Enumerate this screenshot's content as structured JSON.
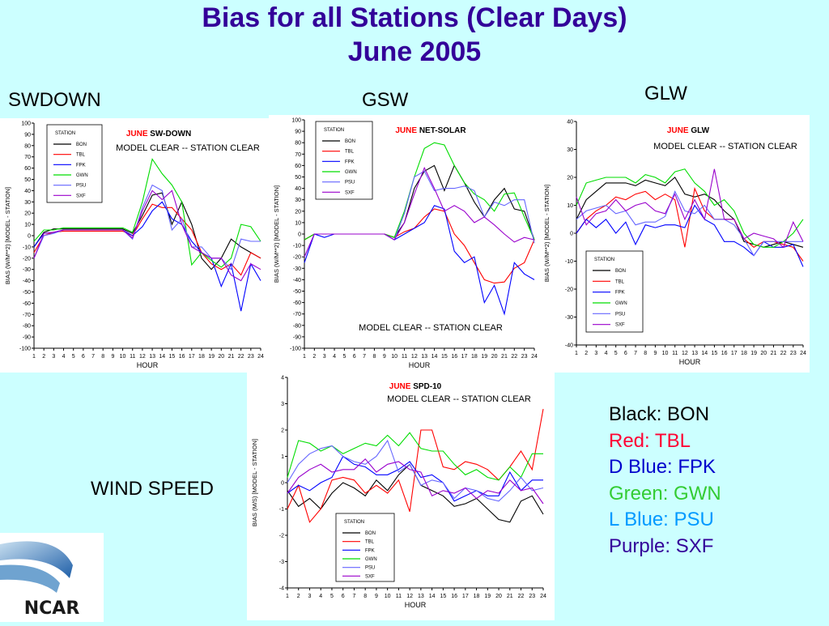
{
  "header": {
    "title_line1": "Bias for all Stations (Clear Days)",
    "title_line2": "June 2005"
  },
  "labels": {
    "swdown": "SWDOWN",
    "gsw": "GSW",
    "glw": "GLW",
    "wind": "WIND SPEED"
  },
  "color_legend": [
    {
      "text": "Black: BON",
      "color": "#000000"
    },
    {
      "text": "Red:  TBL",
      "color": "#ff0033"
    },
    {
      "text": "D Blue: FPK",
      "color": "#0000cc"
    },
    {
      "text": "Green: GWN",
      "color": "#33cc33"
    },
    {
      "text": "L Blue: PSU",
      "color": "#0099ff"
    },
    {
      "text": "Purple: SXF",
      "color": "#330099"
    }
  ],
  "logo": {
    "text": "NCAR"
  },
  "chart_data": [
    {
      "type": "line",
      "month_label": "JUNE",
      "variable_label": "SW-DOWN",
      "subtitle": "MODEL CLEAR   -- STATION CLEAR",
      "xlabel": "HOUR",
      "ylabel": "BIAS (W/M**2)  [MODEL - STATION]",
      "xlim": [
        1,
        24
      ],
      "ylim": [
        -100,
        100
      ],
      "ytick_step": 10,
      "legend_title": "STATION",
      "legend_placement": "top-left",
      "x": [
        1,
        2,
        3,
        4,
        5,
        6,
        7,
        8,
        9,
        10,
        11,
        12,
        13,
        14,
        15,
        16,
        17,
        18,
        19,
        20,
        21,
        22,
        23,
        24
      ],
      "series": [
        {
          "name": "BON",
          "color": "#000000",
          "values": [
            -10,
            3,
            6,
            6,
            6,
            6,
            6,
            6,
            6,
            6,
            2,
            18,
            36,
            38,
            10,
            30,
            10,
            -20,
            -30,
            -20,
            -3,
            -10,
            -15,
            -20
          ]
        },
        {
          "name": "TBL",
          "color": "#ff0000",
          "values": [
            -15,
            0,
            3,
            4,
            4,
            4,
            4,
            4,
            4,
            4,
            0,
            15,
            28,
            25,
            25,
            15,
            5,
            -15,
            -25,
            -30,
            -25,
            -35,
            -15,
            -20
          ]
        },
        {
          "name": "FPK",
          "color": "#0000ff",
          "values": [
            -10,
            2,
            3,
            5,
            5,
            5,
            5,
            5,
            5,
            5,
            0,
            8,
            22,
            30,
            15,
            10,
            -5,
            -15,
            -20,
            -45,
            -25,
            -67,
            -25,
            -40
          ]
        },
        {
          "name": "GWN",
          "color": "#00dd00",
          "values": [
            -5,
            5,
            5,
            7,
            7,
            7,
            7,
            7,
            7,
            7,
            3,
            30,
            68,
            55,
            45,
            30,
            -26,
            -15,
            -22,
            -28,
            -20,
            10,
            8,
            -5
          ]
        },
        {
          "name": "PSU",
          "color": "#6666ff",
          "values": [
            -20,
            0,
            2,
            5,
            5,
            5,
            5,
            5,
            5,
            5,
            -3,
            25,
            45,
            40,
            5,
            15,
            -10,
            -10,
            -20,
            -20,
            -30,
            -3,
            -5,
            -5
          ]
        },
        {
          "name": "SXF",
          "color": "#9900cc",
          "values": [
            -20,
            2,
            3,
            5,
            5,
            5,
            5,
            5,
            5,
            5,
            -2,
            22,
            40,
            32,
            40,
            10,
            -10,
            -15,
            -20,
            -20,
            -35,
            -40,
            -25,
            -30
          ]
        }
      ]
    },
    {
      "type": "line",
      "month_label": "JUNE",
      "variable_label": "NET-SOLAR",
      "subtitle": "MODEL CLEAR   -- STATION CLEAR",
      "xlabel": "HOUR",
      "ylabel": "BIAS (W/M**2)  [MODEL - STATION]",
      "xlim": [
        1,
        24
      ],
      "ylim": [
        -100,
        100
      ],
      "ytick_step": 10,
      "legend_title": "STATION",
      "legend_placement": "top-left",
      "x": [
        1,
        2,
        3,
        4,
        5,
        6,
        7,
        8,
        9,
        10,
        11,
        12,
        13,
        14,
        15,
        16,
        17,
        18,
        19,
        20,
        21,
        22,
        23,
        24
      ],
      "series": [
        {
          "name": "BON",
          "color": "#000000",
          "values": [
            -5,
            0,
            0,
            0,
            0,
            0,
            0,
            0,
            0,
            -3,
            10,
            40,
            55,
            60,
            38,
            60,
            45,
            28,
            15,
            30,
            40,
            22,
            20,
            -5
          ]
        },
        {
          "name": "TBL",
          "color": "#ff0000",
          "values": [
            -5,
            0,
            0,
            0,
            0,
            0,
            0,
            0,
            0,
            -3,
            2,
            5,
            15,
            22,
            20,
            0,
            -10,
            -25,
            -40,
            -43,
            -42,
            -30,
            -25,
            -5
          ]
        },
        {
          "name": "FPK",
          "color": "#0000ff",
          "values": [
            -25,
            0,
            -3,
            0,
            0,
            0,
            0,
            0,
            0,
            -5,
            0,
            5,
            10,
            25,
            22,
            -15,
            -25,
            -20,
            -60,
            -45,
            -70,
            -25,
            -35,
            -40
          ]
        },
        {
          "name": "GWN",
          "color": "#00dd00",
          "values": [
            -5,
            0,
            0,
            0,
            0,
            0,
            0,
            0,
            0,
            -3,
            20,
            50,
            75,
            80,
            78,
            60,
            45,
            35,
            30,
            20,
            35,
            36,
            15,
            -5
          ]
        },
        {
          "name": "PSU",
          "color": "#6666ff",
          "values": [
            -20,
            0,
            0,
            0,
            0,
            0,
            0,
            0,
            0,
            -5,
            18,
            50,
            55,
            38,
            40,
            40,
            42,
            38,
            15,
            28,
            25,
            30,
            30,
            -8
          ]
        },
        {
          "name": "SXF",
          "color": "#9900cc",
          "values": [
            -20,
            0,
            0,
            0,
            0,
            0,
            0,
            0,
            0,
            -5,
            10,
            35,
            58,
            40,
            20,
            25,
            20,
            10,
            15,
            8,
            0,
            -7,
            -3,
            -5
          ]
        }
      ]
    },
    {
      "type": "line",
      "month_label": "JUNE",
      "variable_label": "GLW",
      "subtitle": "MODEL CLEAR   -- STATION CLEAR",
      "xlabel": "HOUR",
      "ylabel": "BIAS (W/M**2)  [MODEL - STATION]",
      "xlim": [
        1,
        24
      ],
      "ylim": [
        -40,
        40
      ],
      "ytick_step": 10,
      "legend_title": "STATION",
      "legend_placement": "bottom-left",
      "x": [
        1,
        2,
        3,
        4,
        5,
        6,
        7,
        8,
        9,
        10,
        11,
        12,
        13,
        14,
        15,
        16,
        17,
        18,
        19,
        20,
        21,
        22,
        23,
        24
      ],
      "series": [
        {
          "name": "BON",
          "color": "#000000",
          "values": [
            5,
            12,
            15,
            18,
            18,
            18,
            17,
            19,
            18,
            17,
            20,
            14,
            13,
            14,
            12,
            8,
            5,
            -3,
            -4,
            -5,
            -4,
            -3,
            -4,
            -5
          ]
        },
        {
          "name": "TBL",
          "color": "#ff0000",
          "values": [
            0,
            5,
            8,
            10,
            13,
            12,
            14,
            15,
            12,
            14,
            12,
            -5,
            16,
            8,
            5,
            5,
            5,
            -2,
            -5,
            -3,
            -3,
            -4,
            -5,
            -10
          ]
        },
        {
          "name": "FPK",
          "color": "#0000ff",
          "values": [
            0,
            5,
            2,
            5,
            0,
            4,
            -4,
            3,
            2,
            3,
            3,
            2,
            10,
            5,
            3,
            -3,
            -3,
            -5,
            -8,
            -3,
            -5,
            -5,
            -4,
            -12
          ]
        },
        {
          "name": "GWN",
          "color": "#00dd00",
          "values": [
            10,
            18,
            19,
            20,
            20,
            20,
            18,
            21,
            20,
            18,
            22,
            23,
            18,
            15,
            10,
            12,
            8,
            0,
            -4,
            -5,
            -5,
            -3,
            0,
            5
          ]
        },
        {
          "name": "PSU",
          "color": "#6666ff",
          "values": [
            5,
            8,
            9,
            10,
            7,
            8,
            3,
            4,
            4,
            6,
            15,
            8,
            7,
            10,
            5,
            5,
            3,
            -2,
            -8,
            -3,
            -3,
            -3,
            -3,
            -3
          ]
        },
        {
          "name": "SXF",
          "color": "#9900cc",
          "values": [
            13,
            3,
            7,
            8,
            12,
            8,
            10,
            11,
            8,
            7,
            14,
            5,
            12,
            5,
            23,
            5,
            5,
            -2,
            0,
            -1,
            -2,
            -5,
            4,
            -3
          ]
        }
      ]
    },
    {
      "type": "line",
      "month_label": "JUNE",
      "variable_label": "SPD-10",
      "subtitle": "MODEL CLEAR   -- STATION CLEAR",
      "xlabel": "HOUR",
      "ylabel": "BIAS (M/S)  [MODEL - STATION]",
      "xlim": [
        1,
        24
      ],
      "ylim": [
        -4,
        4
      ],
      "ytick_step": 1,
      "legend_title": "STATION",
      "legend_placement": "bottom-left",
      "x": [
        1,
        2,
        3,
        4,
        5,
        6,
        7,
        8,
        9,
        10,
        11,
        12,
        13,
        14,
        15,
        16,
        17,
        18,
        19,
        20,
        21,
        22,
        23,
        24
      ],
      "series": [
        {
          "name": "BON",
          "color": "#000000",
          "values": [
            -0.3,
            -0.9,
            -0.6,
            -1.0,
            -0.4,
            0.0,
            -0.2,
            -0.5,
            0.1,
            -0.3,
            0.3,
            0.7,
            -0.1,
            -0.3,
            -0.5,
            -0.9,
            -0.8,
            -0.6,
            -1.0,
            -1.4,
            -1.5,
            -0.7,
            -0.5,
            -1.2
          ]
        },
        {
          "name": "TBL",
          "color": "#ff0000",
          "values": [
            -1.0,
            -0.1,
            -1.5,
            -1.0,
            0.1,
            0.2,
            0.1,
            -0.4,
            -0.1,
            -0.4,
            0.1,
            -1.1,
            2.0,
            2.0,
            0.6,
            0.5,
            0.8,
            0.7,
            0.5,
            0.1,
            0.6,
            1.2,
            0.5,
            2.8
          ]
        },
        {
          "name": "FPK",
          "color": "#0000ff",
          "values": [
            -0.4,
            -0.1,
            -0.3,
            0.0,
            0.2,
            1.0,
            0.7,
            0.6,
            0.3,
            0.3,
            0.5,
            0.8,
            0.2,
            0.3,
            0.0,
            -0.7,
            -0.5,
            -0.3,
            -0.5,
            -0.5,
            0.4,
            -0.3,
            0.1,
            0.1
          ]
        },
        {
          "name": "GWN",
          "color": "#00dd00",
          "values": [
            0.2,
            1.6,
            1.5,
            1.2,
            1.4,
            1.1,
            1.3,
            1.5,
            1.4,
            1.8,
            1.4,
            1.9,
            1.3,
            1.2,
            1.2,
            0.7,
            0.3,
            0.5,
            0.2,
            0.1,
            0.6,
            0.2,
            1.1,
            1.1
          ]
        },
        {
          "name": "PSU",
          "color": "#6666ff",
          "values": [
            0.0,
            0.7,
            1.1,
            1.3,
            1.4,
            1.0,
            0.8,
            0.7,
            1.0,
            1.6,
            0.4,
            0.7,
            -0.1,
            0.1,
            0.0,
            -0.6,
            -0.2,
            -0.3,
            -0.6,
            -0.7,
            -0.3,
            0.2,
            -0.3,
            -0.2
          ]
        },
        {
          "name": "SXF",
          "color": "#9900cc",
          "values": [
            -0.4,
            0.2,
            0.5,
            0.7,
            0.4,
            0.5,
            0.5,
            0.9,
            0.4,
            0.7,
            0.8,
            0.5,
            0.4,
            -0.5,
            -0.3,
            -0.4,
            -0.2,
            -0.6,
            -0.3,
            -0.4,
            0.1,
            -0.3,
            -0.2,
            -0.8
          ]
        }
      ]
    }
  ]
}
